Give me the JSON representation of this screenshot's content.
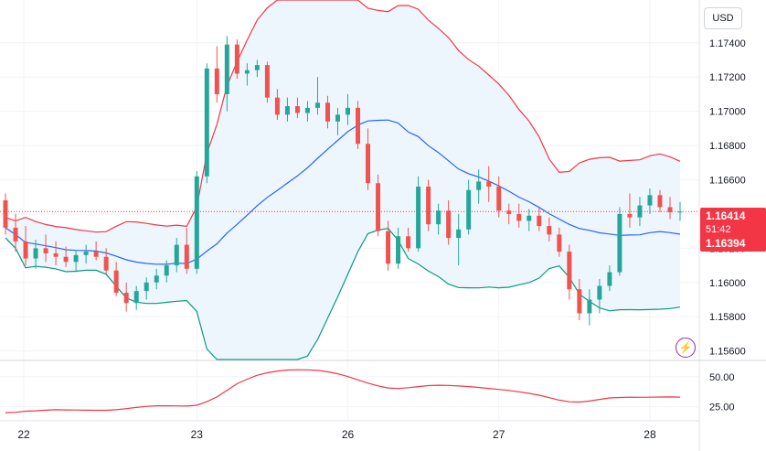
{
  "currency": "USD",
  "price_tag": {
    "last": "1.16414",
    "countdown": "51:42",
    "low": "1.16394"
  },
  "flash_icon": "lightning-icon",
  "colors": {
    "up": "#26a69a",
    "down": "#ef5350",
    "upper_band": "#f23645",
    "basis": "#2962ff",
    "lower_band": "#089981",
    "band_fill": "#eef6fd",
    "oscillator": "#f23645",
    "price_line": "#f23645"
  },
  "chart_data": [
    {
      "type": "candlestick",
      "indicator": "bollinger-bands",
      "ylim": [
        1.1555,
        1.1765
      ],
      "y_ticks": [
        "1.17400",
        "1.17200",
        "1.17000",
        "1.16800",
        "1.16600",
        "1.16400",
        "1.16200",
        "1.16000",
        "1.15800",
        "1.15600"
      ],
      "x_ticks": [
        "22",
        "23",
        "26",
        "27",
        "28"
      ],
      "candles": [
        [
          1.1648,
          1.1652,
          1.1628,
          1.1632
        ],
        [
          1.1632,
          1.164,
          1.1618,
          1.1624
        ],
        [
          1.1624,
          1.1633,
          1.161,
          1.1614
        ],
        [
          1.1614,
          1.1625,
          1.1608,
          1.162
        ],
        [
          1.162,
          1.1628,
          1.1612,
          1.1617
        ],
        [
          1.1617,
          1.1624,
          1.161,
          1.1615
        ],
        [
          1.1615,
          1.1621,
          1.1609,
          1.1612
        ],
        [
          1.1612,
          1.1619,
          1.1606,
          1.1616
        ],
        [
          1.1616,
          1.1622,
          1.1611,
          1.1618
        ],
        [
          1.1618,
          1.1624,
          1.1613,
          1.1615
        ],
        [
          1.1615,
          1.162,
          1.1605,
          1.1607
        ],
        [
          1.1607,
          1.1612,
          1.1592,
          1.1594
        ],
        [
          1.1594,
          1.16,
          1.1583,
          1.1588
        ],
        [
          1.1588,
          1.1598,
          1.1584,
          1.1595
        ],
        [
          1.1595,
          1.1603,
          1.159,
          1.16
        ],
        [
          1.16,
          1.1608,
          1.1596,
          1.1604
        ],
        [
          1.1604,
          1.1613,
          1.16,
          1.161
        ],
        [
          1.161,
          1.1626,
          1.1606,
          1.1622
        ],
        [
          1.1622,
          1.1632,
          1.1605,
          1.1608
        ],
        [
          1.1608,
          1.1665,
          1.1605,
          1.1662
        ],
        [
          1.1662,
          1.1728,
          1.1658,
          1.1725
        ],
        [
          1.1725,
          1.1738,
          1.1705,
          1.171
        ],
        [
          1.171,
          1.1744,
          1.17,
          1.1739
        ],
        [
          1.1739,
          1.1742,
          1.1719,
          1.1722
        ],
        [
          1.1722,
          1.1728,
          1.1715,
          1.1724
        ],
        [
          1.1724,
          1.173,
          1.172,
          1.1727
        ],
        [
          1.1727,
          1.1729,
          1.1705,
          1.1708
        ],
        [
          1.1708,
          1.1713,
          1.1695,
          1.1698
        ],
        [
          1.1698,
          1.1708,
          1.1694,
          1.1703
        ],
        [
          1.1703,
          1.1708,
          1.1696,
          1.1699
        ],
        [
          1.1699,
          1.1706,
          1.1694,
          1.1702
        ],
        [
          1.1702,
          1.172,
          1.1698,
          1.1705
        ],
        [
          1.1705,
          1.1709,
          1.169,
          1.1694
        ],
        [
          1.1694,
          1.1702,
          1.1686,
          1.1698
        ],
        [
          1.1698,
          1.171,
          1.1692,
          1.1702
        ],
        [
          1.1702,
          1.1706,
          1.1678,
          1.1681
        ],
        [
          1.1681,
          1.169,
          1.1654,
          1.1658
        ],
        [
          1.1658,
          1.1663,
          1.1627,
          1.163
        ],
        [
          1.163,
          1.1636,
          1.1607,
          1.1611
        ],
        [
          1.1611,
          1.1632,
          1.1608,
          1.1627
        ],
        [
          1.1627,
          1.1632,
          1.1618,
          1.162
        ],
        [
          1.162,
          1.1662,
          1.1618,
          1.1656
        ],
        [
          1.1656,
          1.166,
          1.163,
          1.1634
        ],
        [
          1.1634,
          1.1646,
          1.1628,
          1.1642
        ],
        [
          1.1642,
          1.1648,
          1.1622,
          1.1626
        ],
        [
          1.1626,
          1.164,
          1.161,
          1.1631
        ],
        [
          1.1631,
          1.166,
          1.1628,
          1.1654
        ],
        [
          1.1654,
          1.1666,
          1.1646,
          1.1659
        ],
        [
          1.1659,
          1.1668,
          1.1647,
          1.1656
        ],
        [
          1.1656,
          1.1662,
          1.1638,
          1.1642
        ],
        [
          1.1642,
          1.1646,
          1.1634,
          1.164
        ],
        [
          1.164,
          1.1646,
          1.1632,
          1.1636
        ],
        [
          1.1636,
          1.1643,
          1.163,
          1.1639
        ],
        [
          1.1639,
          1.1644,
          1.163,
          1.1633
        ],
        [
          1.1633,
          1.1638,
          1.1624,
          1.1628
        ],
        [
          1.1628,
          1.1632,
          1.1615,
          1.1618
        ],
        [
          1.1618,
          1.1622,
          1.159,
          1.1596
        ],
        [
          1.1596,
          1.1602,
          1.1578,
          1.1582
        ],
        [
          1.1582,
          1.1596,
          1.1575,
          1.159
        ],
        [
          1.159,
          1.1602,
          1.1582,
          1.1598
        ],
        [
          1.1598,
          1.161,
          1.1595,
          1.1606
        ],
        [
          1.1606,
          1.1644,
          1.1604,
          1.164
        ],
        [
          1.164,
          1.1652,
          1.1632,
          1.1638
        ],
        [
          1.1638,
          1.165,
          1.1633,
          1.1645
        ],
        [
          1.1645,
          1.1655,
          1.164,
          1.1651
        ],
        [
          1.1651,
          1.1654,
          1.1641,
          1.1644
        ],
        [
          1.1644,
          1.165,
          1.1637,
          1.1641
        ],
        [
          1.1641,
          1.1647,
          1.1636,
          1.16414
        ]
      ]
    },
    {
      "type": "line",
      "y_ticks": [
        "50.00",
        "25.00"
      ],
      "ylim": [
        14,
        62
      ]
    }
  ]
}
